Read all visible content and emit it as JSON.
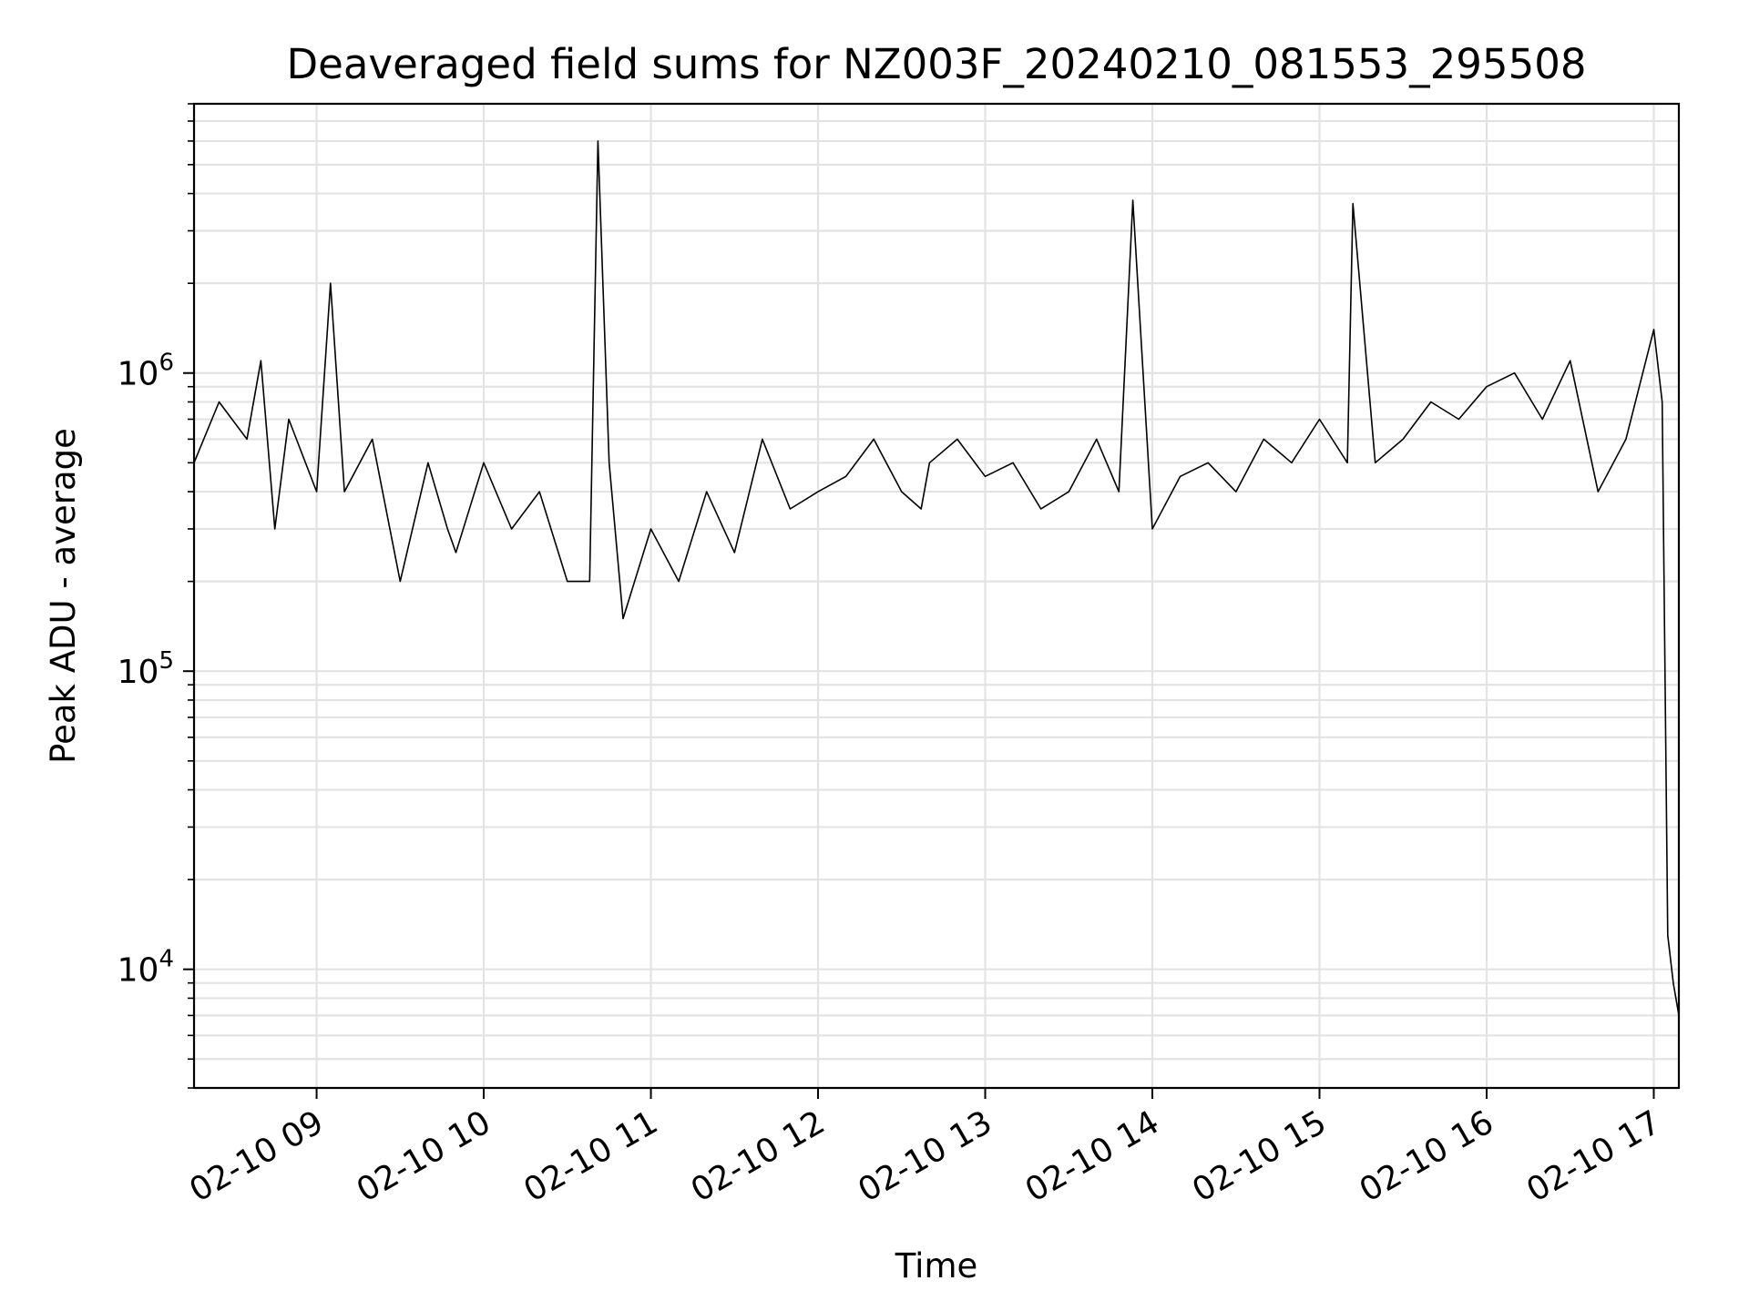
{
  "chart_data": {
    "type": "line",
    "title": "Deaveraged field sums for NZ003F_20240210_081553_295508",
    "xlabel": "Time",
    "ylabel": "Peak ADU - average",
    "yscale": "log",
    "grid": true,
    "series_color": "#000000",
    "xlim": [
      "02-10 08:16",
      "02-10 17:09"
    ],
    "ylim": [
      4000,
      8000000
    ],
    "x_ticks": [
      "02-10 09",
      "02-10 10",
      "02-10 11",
      "02-10 12",
      "02-10 13",
      "02-10 14",
      "02-10 15",
      "02-10 16",
      "02-10 17"
    ],
    "y_ticks": [
      {
        "base": "10",
        "exp": "4",
        "value": 10000
      },
      {
        "base": "10",
        "exp": "5",
        "value": 100000
      },
      {
        "base": "10",
        "exp": "6",
        "value": 1000000
      }
    ],
    "series": [
      {
        "x": [
          "08:16",
          "08:25",
          "08:35",
          "08:40",
          "08:45",
          "08:50",
          "09:00",
          "09:05",
          "09:10",
          "09:20",
          "09:30",
          "09:40",
          "09:47",
          "09:50",
          "10:00",
          "10:10",
          "10:20",
          "10:30",
          "10:38",
          "10:41",
          "10:45",
          "10:50",
          "11:00",
          "11:10",
          "11:20",
          "11:30",
          "11:40",
          "11:50",
          "12:00",
          "12:10",
          "12:20",
          "12:30",
          "12:37",
          "12:40",
          "12:50",
          "13:00",
          "13:10",
          "13:20",
          "13:30",
          "13:40",
          "13:48",
          "13:53",
          "14:00",
          "14:10",
          "14:20",
          "14:30",
          "14:40",
          "14:50",
          "15:00",
          "15:10",
          "15:12",
          "15:20",
          "15:30",
          "15:40",
          "15:50",
          "16:00",
          "16:10",
          "16:20",
          "16:30",
          "16:40",
          "16:50",
          "17:00",
          "17:03",
          "17:05",
          "17:07",
          "17:09"
        ],
        "values": [
          500000,
          800000,
          600000,
          1100000,
          300000,
          700000,
          400000,
          2000000,
          400000,
          600000,
          200000,
          500000,
          300000,
          250000,
          500000,
          300000,
          400000,
          200000,
          200000,
          6000000,
          500000,
          150000,
          300000,
          200000,
          400000,
          250000,
          600000,
          350000,
          400000,
          450000,
          600000,
          400000,
          350000,
          500000,
          600000,
          450000,
          500000,
          350000,
          400000,
          600000,
          400000,
          3800000,
          300000,
          450000,
          500000,
          400000,
          600000,
          500000,
          700000,
          500000,
          3700000,
          500000,
          600000,
          800000,
          700000,
          900000,
          1000000,
          700000,
          1100000,
          400000,
          600000,
          1400000,
          800000,
          13000,
          9000,
          7000
        ]
      }
    ]
  }
}
